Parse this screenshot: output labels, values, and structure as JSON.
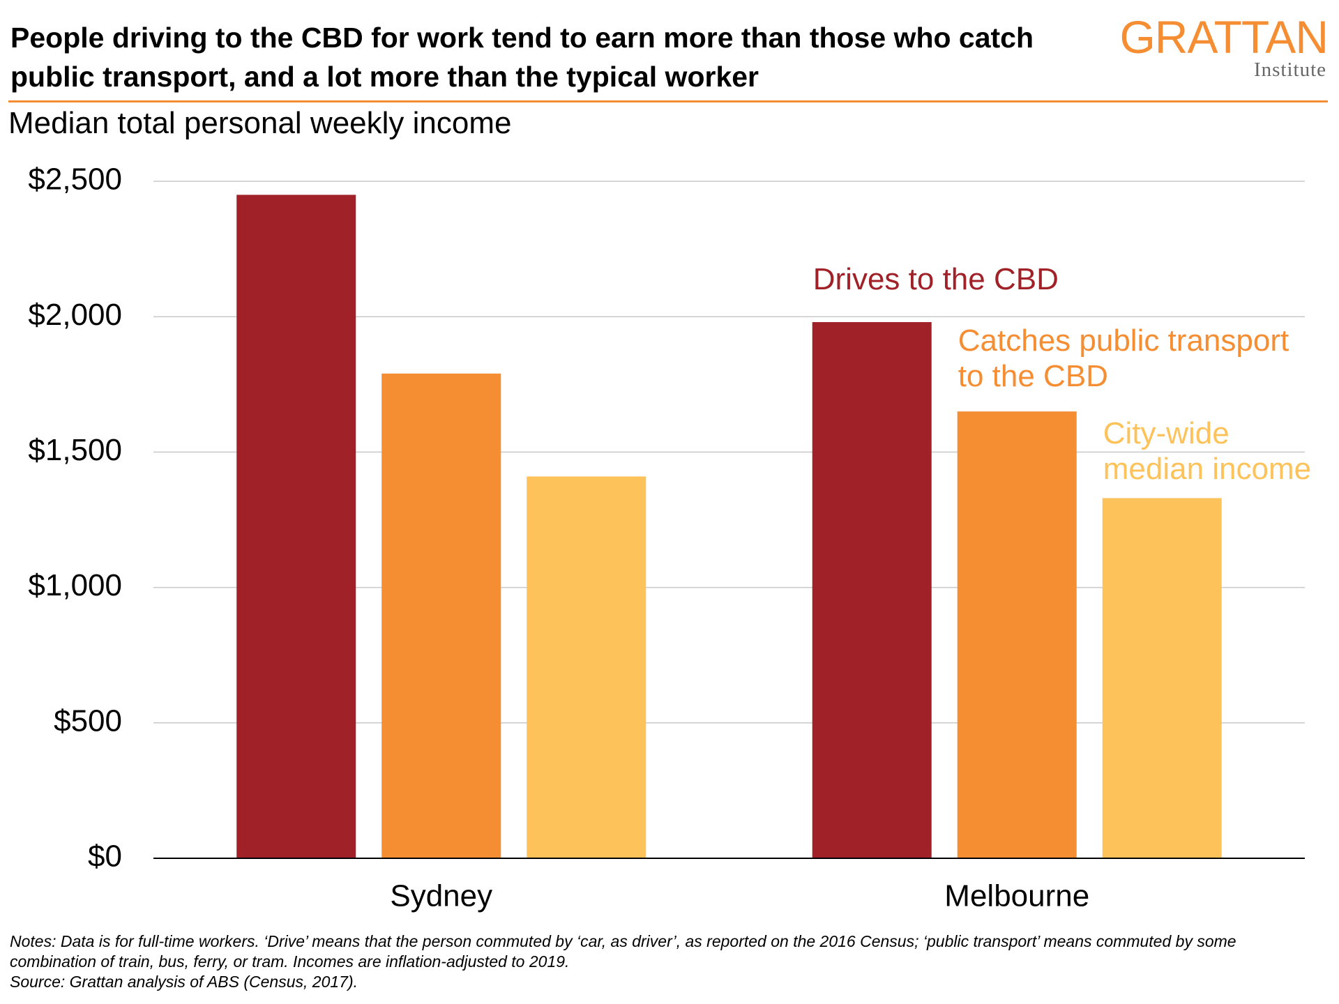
{
  "chart_data": {
    "type": "bar",
    "title": "People driving to the CBD for work tend to earn more than those who catch public transport, and a lot more than the typical worker",
    "subtitle": "Median total personal weekly income",
    "logo": {
      "name": "GRATTAN",
      "sub": "Institute"
    },
    "categories": [
      "Sydney",
      "Melbourne"
    ],
    "series": [
      {
        "name": "Drives to the CBD",
        "color": "#a02127",
        "values": [
          2450,
          1980
        ]
      },
      {
        "name": "Catches public transport to the CBD",
        "color": "#f58d32",
        "values": [
          1790,
          1650
        ]
      },
      {
        "name": "City-wide median income",
        "color": "#fdc35a",
        "values": [
          1410,
          1330
        ]
      }
    ],
    "ylim": [
      0,
      2500
    ],
    "yticks": [
      {
        "value": 0,
        "label": "$0"
      },
      {
        "value": 500,
        "label": "$500"
      },
      {
        "value": 1000,
        "label": "$1,000"
      },
      {
        "value": 1500,
        "label": "$1,500"
      },
      {
        "value": 2000,
        "label": "$2,000"
      },
      {
        "value": 2500,
        "label": "$2,500"
      }
    ],
    "grid": true,
    "notes": "Notes: Data is for full-time workers. ‘Drive’ means that the person commuted by ‘car, as driver’, as reported on the 2016 Census; ‘public transport’ means commuted by some combination of train, bus, ferry, or tram. Incomes are inflation-adjusted to 2019.",
    "source": "Source: Grattan analysis of ABS (Census, 2017)."
  }
}
